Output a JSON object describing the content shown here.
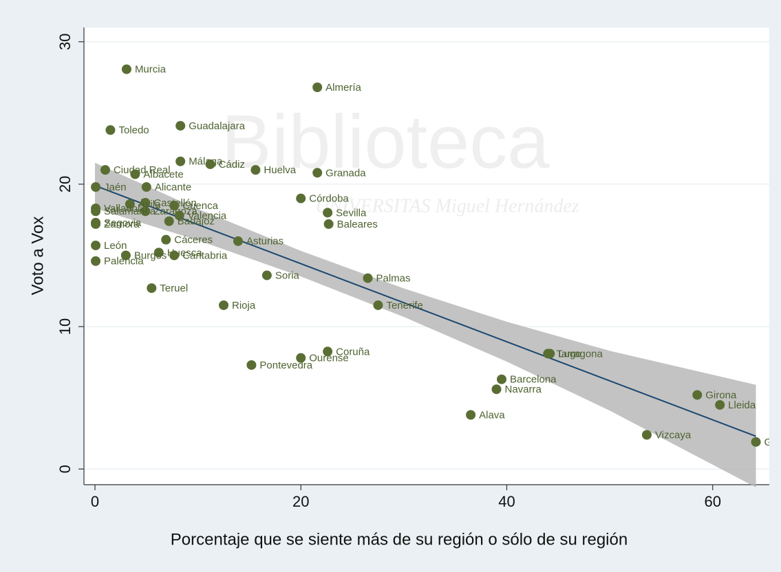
{
  "chart_data": {
    "type": "scatter",
    "xlabel": "Porcentaje que se siente más de su región o sólo de su región",
    "ylabel": "Voto a Vox",
    "watermark": [
      "Biblioteca",
      "UNIVERSITAS Miguel Hernández"
    ],
    "xlim": [
      -1.07,
      65.5
    ],
    "ylim": [
      -1.1,
      31.0
    ],
    "xticks": [
      0,
      20,
      40,
      60
    ],
    "yticks": [
      0,
      10,
      20,
      30
    ],
    "grid": true,
    "color": "#5a6e34",
    "labels": [
      "Murcia",
      "Almería",
      "Toledo",
      "Guadalajara",
      "Málaga",
      "Cádiz",
      "Huelva",
      "Granada",
      "Ciudad Real",
      "Albacete",
      "Jaén",
      "Alicante",
      "Córdoba",
      "Castellón",
      "Ávila",
      "Zaragoza",
      "Cuenca",
      "Valencia",
      "Badajoz",
      "Sevilla",
      "Baleares",
      "Valladolid",
      "Salamanca",
      "Segovia",
      "Zamora",
      "Cáceres",
      "Asturias",
      "León",
      "Huesca",
      "Cantabria",
      "Burgos",
      "Palencia",
      "Soria",
      "Palmas",
      "Teruel",
      "Rioja",
      "Tenerife",
      "Coruña",
      "Ourense",
      "Pontevedra",
      "Tarragona",
      "Lugo",
      "Barcelona",
      "Navarra",
      "Alava",
      "Girona",
      "Lleida",
      "Vizcaya",
      "Guipúzcoa"
    ],
    "x": [
      3.07,
      21.6,
      1.5,
      8.3,
      8.3,
      11.2,
      15.6,
      21.6,
      1.0,
      3.9,
      0.07,
      5.0,
      20.0,
      4.9,
      3.4,
      4.9,
      7.7,
      8.2,
      7.2,
      22.6,
      22.7,
      0.07,
      0.07,
      0.07,
      0.07,
      6.9,
      13.9,
      0.07,
      6.2,
      7.7,
      3.0,
      0.07,
      16.7,
      26.5,
      5.5,
      12.5,
      27.5,
      22.6,
      20.0,
      15.2,
      44.0,
      44.2,
      39.5,
      39.0,
      36.5,
      58.5,
      60.7,
      53.6,
      64.2
    ],
    "y": [
      28.07,
      26.8,
      23.8,
      24.1,
      21.6,
      21.4,
      21.0,
      20.8,
      21.0,
      20.7,
      19.8,
      19.8,
      19.0,
      18.7,
      18.6,
      18.1,
      18.5,
      17.8,
      17.4,
      18.0,
      17.2,
      18.3,
      18.1,
      17.3,
      17.2,
      16.1,
      16.0,
      15.7,
      15.2,
      15.0,
      15.0,
      14.6,
      13.6,
      13.4,
      12.7,
      11.5,
      11.5,
      8.25,
      7.8,
      7.3,
      8.1,
      8.1,
      6.3,
      5.6,
      3.8,
      5.2,
      4.5,
      2.4,
      1.9
    ],
    "fit": {
      "color": "#1a476f",
      "x": [
        0,
        64.2
      ],
      "y": [
        19.9,
        2.3
      ]
    },
    "band": {
      "color": "#b4b4b4",
      "x": [
        0,
        10,
        20,
        30,
        40,
        50,
        64.2
      ],
      "lower": [
        18.3,
        16.06,
        13.52,
        10.68,
        7.54,
        4.1,
        -1.29
      ],
      "upper": [
        21.5,
        18.26,
        15.32,
        12.68,
        10.34,
        8.3,
        5.91
      ]
    }
  }
}
